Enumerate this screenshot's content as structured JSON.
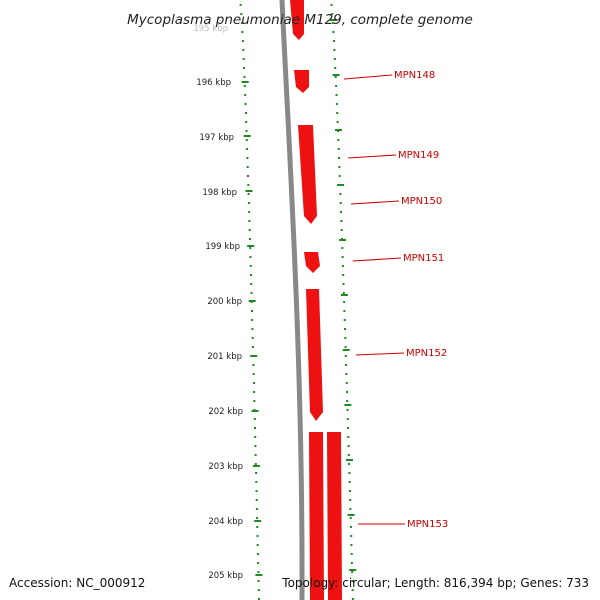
{
  "title": "Mycoplasma pneumoniae M129, complete genome",
  "footer": {
    "accession": "Accession: NC_000912",
    "summary": "Topology: circular; Length: 816,394 bp; Genes: 733"
  },
  "axis": {
    "faded_tick": "195 kbp",
    "ticks": [
      "196 kbp",
      "197 kbp",
      "198 kbp",
      "199 kbp",
      "200 kbp",
      "201 kbp",
      "202 kbp",
      "203 kbp",
      "204 kbp",
      "205 kbp"
    ]
  },
  "genes": [
    {
      "label": "",
      "direction": "reverse",
      "color": "#ee1111"
    },
    {
      "label": "MPN148",
      "direction": "reverse",
      "color": "#ee1111"
    },
    {
      "label": "MPN149",
      "direction": "reverse",
      "color": "#ee1111"
    },
    {
      "label": "MPN150",
      "direction": "reverse",
      "color": "#ee1111"
    },
    {
      "label": "MPN151",
      "direction": "reverse",
      "color": "#ee1111"
    },
    {
      "label": "MPN152",
      "direction": "reverse",
      "color": "#ee1111"
    },
    {
      "label": "MPN153",
      "direction": "none",
      "color": "#ee1111"
    },
    {
      "label": "",
      "direction": "none",
      "color": "#ee2299"
    }
  ],
  "colors": {
    "ruler": "#228822",
    "backbone": "#888888",
    "label": "#cc0000"
  }
}
